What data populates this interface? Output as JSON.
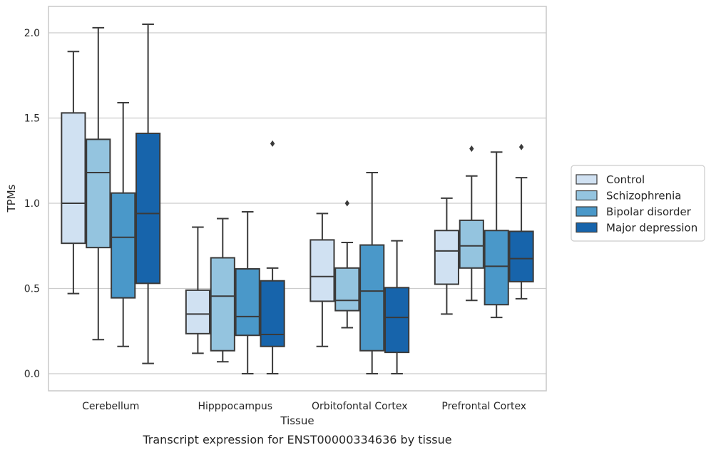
{
  "caption": "Transcript expression for ENST00000334636 by tissue",
  "colors": {
    "grid": "#cccccc",
    "frame": "#c8c8c8",
    "line": "#3a3a3a",
    "text": "#262626"
  },
  "chart_data": {
    "type": "boxplot",
    "title": "",
    "xlabel": "Tissue",
    "ylabel": "TPMs",
    "ylim": [
      -0.1,
      2.155
    ],
    "yticks": [
      0.0,
      0.5,
      1.0,
      1.5,
      2.0
    ],
    "ytick_labels": [
      "0.0",
      "0.5",
      "1.0",
      "1.5",
      "2.0"
    ],
    "grid": "horizontal",
    "legend_position": "right",
    "categories": [
      "Cerebellum",
      "Hipppocampus",
      "Orbitofontal Cortex",
      "Prefrontal Cortex"
    ],
    "series": [
      {
        "name": "Control",
        "color": "#d0e1f2",
        "boxes": [
          {
            "whislo": 0.47,
            "q1": 0.765,
            "med": 1.0,
            "q3": 1.53,
            "whishi": 1.89,
            "fliers": []
          },
          {
            "whislo": 0.12,
            "q1": 0.235,
            "med": 0.35,
            "q3": 0.49,
            "whishi": 0.86,
            "fliers": []
          },
          {
            "whislo": 0.16,
            "q1": 0.425,
            "med": 0.57,
            "q3": 0.785,
            "whishi": 0.94,
            "fliers": []
          },
          {
            "whislo": 0.35,
            "q1": 0.525,
            "med": 0.72,
            "q3": 0.84,
            "whishi": 1.03,
            "fliers": []
          }
        ]
      },
      {
        "name": "Schizophrenia",
        "color": "#94c4df",
        "boxes": [
          {
            "whislo": 0.2,
            "q1": 0.74,
            "med": 1.18,
            "q3": 1.375,
            "whishi": 2.03,
            "fliers": []
          },
          {
            "whislo": 0.07,
            "q1": 0.135,
            "med": 0.455,
            "q3": 0.68,
            "whishi": 0.91,
            "fliers": []
          },
          {
            "whislo": 0.27,
            "q1": 0.37,
            "med": 0.43,
            "q3": 0.62,
            "whishi": 0.77,
            "fliers": [
              1.0
            ]
          },
          {
            "whislo": 0.43,
            "q1": 0.62,
            "med": 0.75,
            "q3": 0.9,
            "whishi": 1.16,
            "fliers": [
              1.32
            ]
          }
        ]
      },
      {
        "name": "Bipolar disorder",
        "color": "#4a98c9",
        "boxes": [
          {
            "whislo": 0.16,
            "q1": 0.445,
            "med": 0.8,
            "q3": 1.06,
            "whishi": 1.59,
            "fliers": []
          },
          {
            "whislo": 0.0,
            "q1": 0.225,
            "med": 0.335,
            "q3": 0.615,
            "whishi": 0.95,
            "fliers": []
          },
          {
            "whislo": 0.0,
            "q1": 0.135,
            "med": 0.485,
            "q3": 0.755,
            "whishi": 1.18,
            "fliers": []
          },
          {
            "whislo": 0.33,
            "q1": 0.405,
            "med": 0.63,
            "q3": 0.84,
            "whishi": 1.3,
            "fliers": []
          }
        ]
      },
      {
        "name": "Major depression",
        "color": "#1764ab",
        "boxes": [
          {
            "whislo": 0.06,
            "q1": 0.53,
            "med": 0.94,
            "q3": 1.41,
            "whishi": 2.05,
            "fliers": []
          },
          {
            "whislo": 0.0,
            "q1": 0.16,
            "med": 0.23,
            "q3": 0.545,
            "whishi": 0.62,
            "fliers": [
              1.35
            ]
          },
          {
            "whislo": 0.0,
            "q1": 0.125,
            "med": 0.33,
            "q3": 0.505,
            "whishi": 0.78,
            "fliers": []
          },
          {
            "whislo": 0.44,
            "q1": 0.54,
            "med": 0.675,
            "q3": 0.835,
            "whishi": 1.15,
            "fliers": [
              1.33
            ]
          }
        ]
      }
    ]
  }
}
